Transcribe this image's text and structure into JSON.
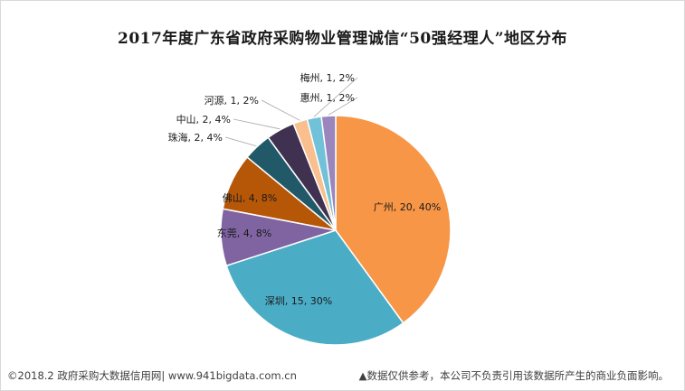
{
  "chart_data": {
    "type": "pie",
    "title": "2017年度广东省政府采购物业管理诚信“50强经理人”地区分布",
    "slices": [
      {
        "name": "广州",
        "value": 20,
        "percent": "40%",
        "color": "#f79646"
      },
      {
        "name": "深圳",
        "value": 15,
        "percent": "30%",
        "color": "#4bacc6"
      },
      {
        "name": "东莞",
        "value": 4,
        "percent": "8%",
        "color": "#8064a2"
      },
      {
        "name": "佛山",
        "value": 4,
        "percent": "8%",
        "color": "#b65708"
      },
      {
        "name": "珠海",
        "value": 2,
        "percent": "4%",
        "color": "#215968"
      },
      {
        "name": "中山",
        "value": 2,
        "percent": "4%",
        "color": "#403151"
      },
      {
        "name": "河源",
        "value": 1,
        "percent": "2%",
        "color": "#fabf8f"
      },
      {
        "name": "梅州",
        "value": 1,
        "percent": "2%",
        "color": "#71c2d8"
      },
      {
        "name": "惠州",
        "value": 1,
        "percent": "2%",
        "color": "#9a86bd"
      }
    ],
    "legend": "none"
  },
  "footer": {
    "left": "©2018.2 政府采购大数据信用网| www.941bigdata.com.cn",
    "right": "▲数据仅供参考，本公司不负责引用该数据所产生的商业负面影响。"
  }
}
